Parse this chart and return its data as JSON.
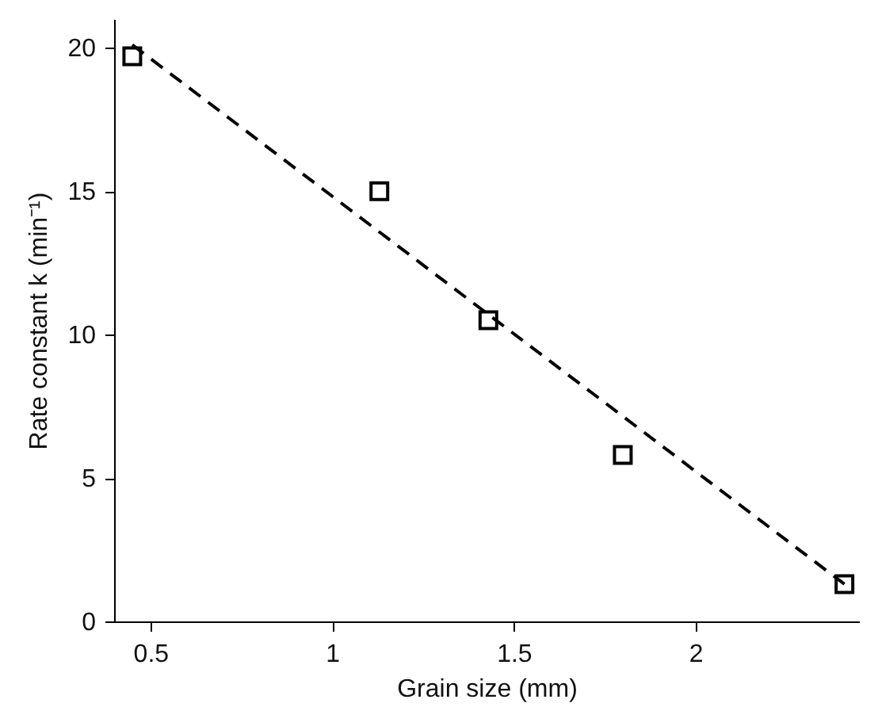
{
  "chart_data": {
    "type": "scatter",
    "xlabel": "Grain size (mm)",
    "ylabel": "Rate constant k (min⁻¹)",
    "xlim": [
      0.4,
      2.45
    ],
    "xticks": [
      0.5,
      1,
      1.5,
      2
    ],
    "ylim": [
      0,
      21
    ],
    "yticks": [
      0,
      5,
      10,
      15,
      20
    ],
    "grid": false,
    "series": [
      {
        "type": "line",
        "line_style": "dashed",
        "color": "#000000",
        "x": [
          0.45,
          2.41
        ],
        "values": [
          20.1,
          1.3
        ]
      },
      {
        "type": "scatter",
        "marker": "square",
        "color": "#000000",
        "x": [
          0.45,
          1.13,
          1.43,
          1.8,
          2.41
        ],
        "values": [
          19.7,
          15,
          10.5,
          5.8,
          1.3
        ]
      }
    ]
  }
}
